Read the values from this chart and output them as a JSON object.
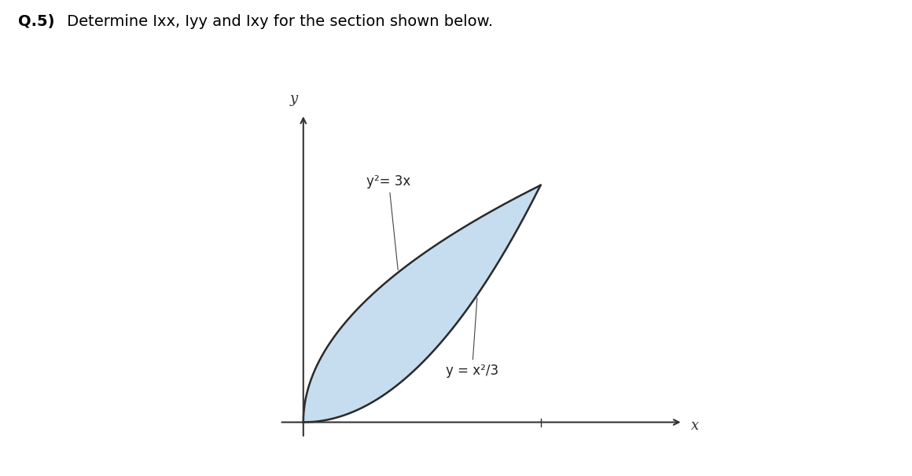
{
  "title_bold": "Q.5)",
  "title_normal": " Determine Ixx, Iyy and Ixy for the section shown below.",
  "title_fontsize": 14,
  "background_color": "#ffffff",
  "fill_color": "#c5ddef",
  "fill_alpha": 1.0,
  "curve_color": "#2a2a2a",
  "curve_linewidth": 1.8,
  "axis_color": "#333333",
  "axis_linewidth": 1.2,
  "label_y2_3x": "y²= 3x",
  "label_yx2_3": "y = x²/3",
  "label_x": "x",
  "label_y": "y",
  "intersection_x": 3.0,
  "intersection_y": 3.0,
  "xlim": [
    -0.6,
    5.5
  ],
  "ylim": [
    -0.5,
    4.2
  ]
}
